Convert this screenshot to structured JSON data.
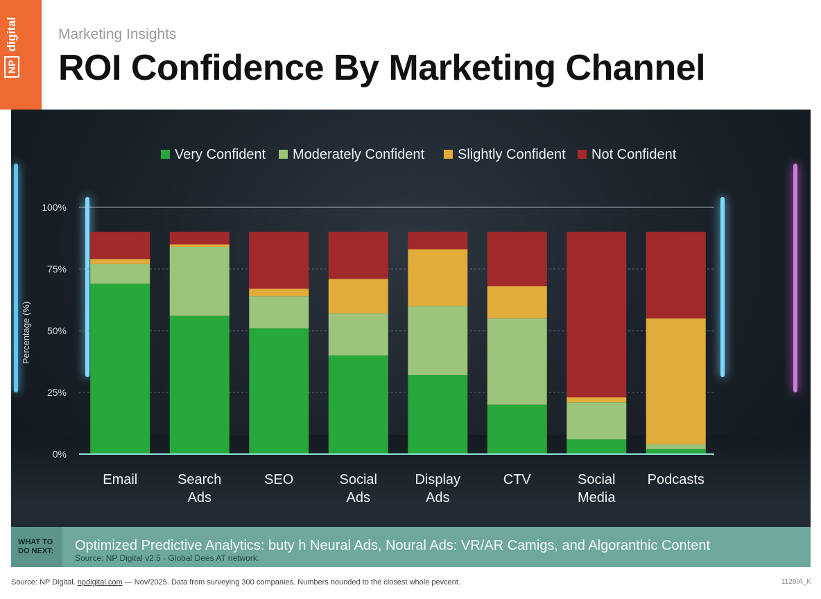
{
  "header": {
    "eyebrow": "Marketing Insights",
    "title": "ROI Confidence By Marketing Channel",
    "logo_text": "digital",
    "logo_box": "NP"
  },
  "chart_data": {
    "type": "bar",
    "stacked": true,
    "ylabel": "Percentage (%)",
    "yticks": [
      "0%",
      "25%",
      "50%",
      "75%",
      "100%"
    ],
    "ylim": [
      0,
      100
    ],
    "legend_position": "top",
    "categories": [
      [
        "Email"
      ],
      [
        "Search",
        "Ads"
      ],
      [
        "SEO"
      ],
      [
        "Social",
        "Ads"
      ],
      [
        "Display",
        "Ads"
      ],
      [
        "CTV"
      ],
      [
        "Social",
        "Media"
      ],
      [
        "Podcasts"
      ]
    ],
    "series": [
      {
        "name": "Very Confident",
        "color": "#27a83a",
        "values": [
          69,
          56,
          51,
          40,
          32,
          20,
          6,
          2
        ]
      },
      {
        "name": "Moderately Confident",
        "color": "#9cc47a",
        "values": [
          8,
          28,
          13,
          17,
          28,
          35,
          15,
          2
        ]
      },
      {
        "name": "Slightly Confident",
        "color": "#e2ac3b",
        "values": [
          2,
          1,
          3,
          14,
          23,
          13,
          2,
          51
        ]
      },
      {
        "name": "Not Confident",
        "color": "#a32a2a",
        "values": [
          11,
          5,
          23,
          19,
          7,
          22,
          67,
          35
        ]
      }
    ]
  },
  "banner": {
    "label": "WHAT TO DO NEXT:",
    "text": "Optimized Predictive Analytics: buty h Neural Ads, Noural Ads: VR/AR Camigs, and Algoranthic Content",
    "sub": "Source: NP Digital v2.5 - Global Dees AT network."
  },
  "footer": {
    "prefix": "Source: NP Digital. ",
    "link": "npdigital.com",
    "suffix": " — Nov/2025. Data from surveying 300 companies. Numbers nounded to the closest whole pevcent.",
    "code": "1128IA_K"
  }
}
